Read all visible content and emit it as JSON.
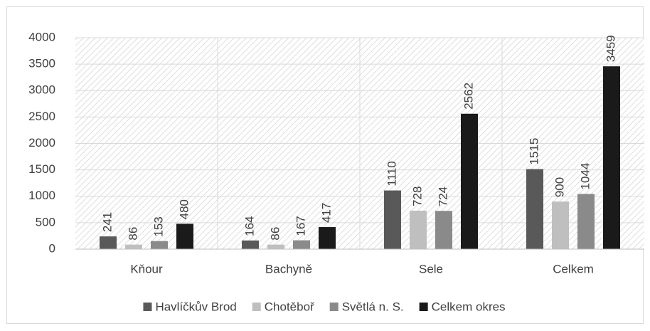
{
  "chart_data": {
    "type": "bar",
    "categories": [
      "Kňour",
      "Bachyně",
      "Sele",
      "Celkem"
    ],
    "series": [
      {
        "name": "Havlíčkův Brod",
        "color": "#595959",
        "values": [
          241,
          164,
          1110,
          1515
        ]
      },
      {
        "name": "Chotěboř",
        "color": "#bfbfbf",
        "values": [
          86,
          86,
          728,
          900
        ]
      },
      {
        "name": "Světlá n. S.",
        "color": "#8a8a8a",
        "values": [
          153,
          167,
          724,
          1044
        ]
      },
      {
        "name": "Celkem okres",
        "color": "#1a1a1a",
        "values": [
          480,
          417,
          2562,
          3459
        ]
      }
    ],
    "ylim": [
      0,
      4000
    ],
    "yticks": [
      0,
      500,
      1000,
      1500,
      2000,
      2500,
      3000,
      3500,
      4000
    ],
    "grid": true,
    "legend": "bottom"
  }
}
